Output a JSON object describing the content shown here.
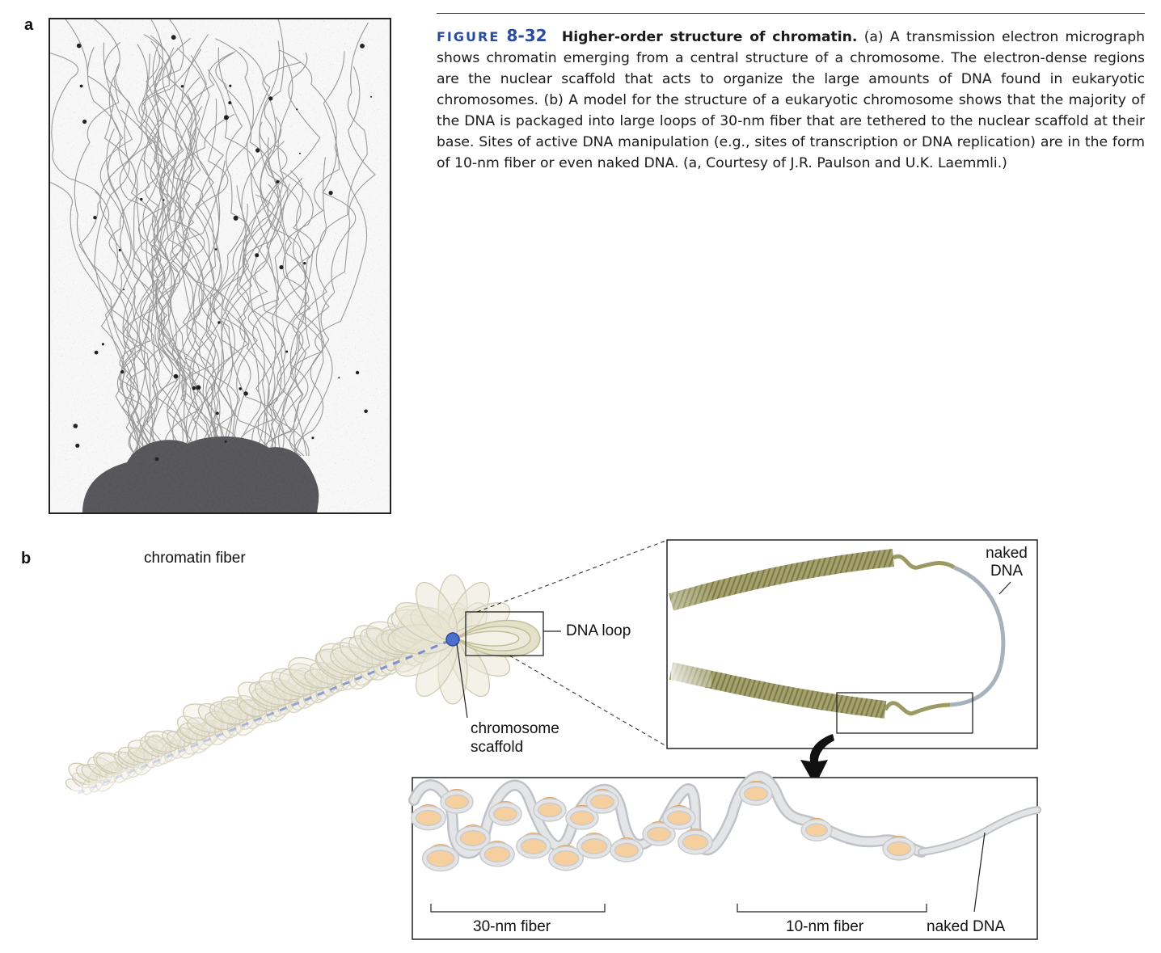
{
  "panel_a": {
    "letter": "a"
  },
  "panel_b": {
    "letter": "b"
  },
  "caption": {
    "label": "FIGURE",
    "number": "8-32",
    "title": "Higher-order structure of chromatin.",
    "body": "(a) A transmission electron micrograph shows chromatin emerging from a central structure of a chromosome. The electron-dense regions are the nuclear scaffold that acts to organize the large amounts of DNA found in eukaryotic chromosomes. (b) A model for the structure of a eukaryotic chromosome shows that the majority of the DNA is packaged into large loops of 30-nm fiber that are tethered to the nuclear scaffold at their base. Sites of active DNA manipulation (e.g., sites of transcription or DNA replication) are in the form of 10-nm fiber or even naked DNA. (a, Courtesy of J.R. Paulson and U.K. Laemmli.)"
  },
  "labels": {
    "chromatin_fiber": "chromatin fiber",
    "dna_loop": "DNA loop",
    "chromosome_scaffold_1": "chromosome",
    "chromosome_scaffold_2": "scaffold",
    "naked_dna_top_1": "naked",
    "naked_dna_top_2": "DNA",
    "fiber_30nm": "30-nm fiber",
    "fiber_10nm": "10-nm fiber",
    "naked_dna_bottom": "naked DNA"
  },
  "colors": {
    "caption_accent": "#2a4d9b",
    "loop_fill": "#d9d6c0",
    "scaffold_blue": "#5a78c8",
    "fiber_olive": "#9a9a5e",
    "naked_dna_gray": "#a8b2bc",
    "nucleosome_orange": "#f6cf9e",
    "dna_tube_gray": "#cfd1d4"
  }
}
